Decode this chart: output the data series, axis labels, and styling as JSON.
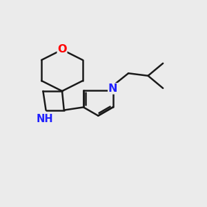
{
  "bg_color": "#ebebeb",
  "line_color": "#1a1a1a",
  "N_color": "#2020ff",
  "O_color": "#ff0000",
  "lw": 1.8,
  "fs": 10.5,
  "xlim": [
    0,
    10
  ],
  "ylim": [
    0,
    10
  ],
  "figsize": [
    3.0,
    3.0
  ],
  "dpi": 100
}
